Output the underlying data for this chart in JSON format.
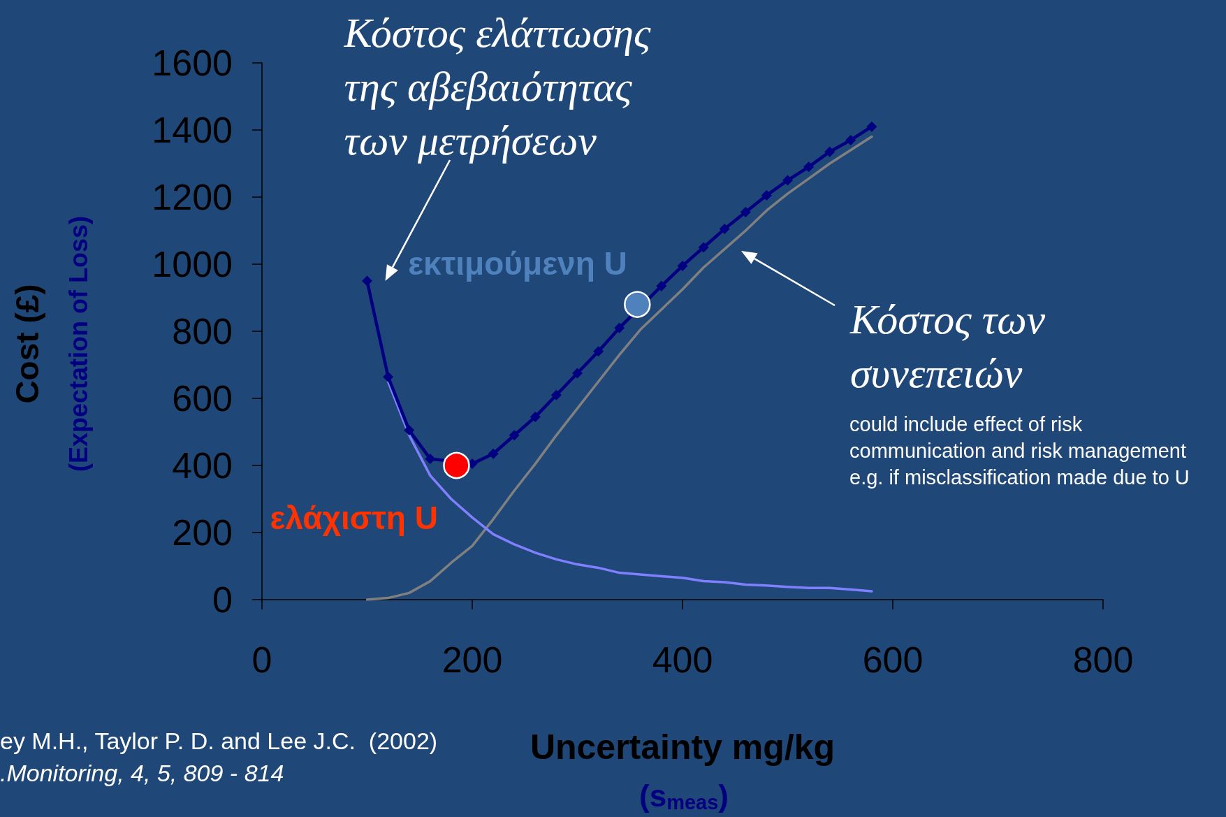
{
  "chart_data": {
    "type": "line",
    "xlabel": "Uncertainty mg/kg",
    "ylabel": "Cost (£)",
    "x": [
      100,
      120,
      140,
      160,
      180,
      200,
      220,
      240,
      260,
      280,
      300,
      320,
      340,
      360,
      380,
      400,
      420,
      440,
      460,
      480,
      500,
      520,
      540,
      560,
      580
    ],
    "series": [
      {
        "color": "#808080",
        "marker": "none",
        "values": [
          0,
          5,
          20,
          55,
          110,
          160,
          240,
          325,
          405,
          490,
          570,
          650,
          730,
          805,
          865,
          925,
          990,
          1045,
          1100,
          1160,
          1210,
          1255,
          1300,
          1340,
          1380
        ]
      },
      {
        "color": "#8080ff",
        "marker": "none",
        "values": [
          null,
          650,
          490,
          370,
          300,
          245,
          195,
          165,
          140,
          120,
          105,
          95,
          80,
          75,
          70,
          65,
          55,
          52,
          45,
          42,
          38,
          35,
          35,
          30,
          25
        ]
      },
      {
        "color": "#000080",
        "marker": "diamond",
        "values": [
          950,
          664,
          505,
          420,
          null,
          405,
          435,
          490,
          545,
          610,
          675,
          740,
          810,
          null,
          935,
          995,
          1050,
          1105,
          1155,
          1205,
          1250,
          1290,
          1335,
          1370,
          1410
        ]
      },
      {
        "type": "scatter",
        "color": "#ff0000",
        "marker": "circle",
        "x": [
          185
        ],
        "values": [
          400
        ]
      },
      {
        "type": "scatter",
        "color": "#4f81bd",
        "marker": "circle",
        "x": [
          357
        ],
        "values": [
          880
        ]
      }
    ],
    "xlim": [
      0,
      800
    ],
    "xticks": [
      0,
      200,
      400,
      600,
      800
    ],
    "ylim": [
      0,
      1600
    ],
    "yticks": [
      0,
      200,
      400,
      600,
      800,
      1000,
      1200,
      1400,
      1600
    ],
    "grid": false,
    "annotations": [
      {
        "text": "Κόστος ελάττωσης\nτης αβεβαιότητας\nτων μετρήσεων",
        "x": 100,
        "y": 950
      },
      "Κόστος των\nσυνεπειών",
      "could include effect of risk\ncommunication and risk management\ne.g. if misclassification made due to U",
      {
        "text": "ελάχιστη U",
        "x": 185,
        "y": 400
      },
      {
        "text": "εκτιμούμενη U",
        "x": 357,
        "y": 880
      },
      "(Expectation of Loss)",
      "(s$_{meas}$)",
      "ey M.H., Taylor P. D. and Lee J.C.  (2002)",
      ".Monitoring, 4, 5, 809 - 814"
    ]
  }
}
